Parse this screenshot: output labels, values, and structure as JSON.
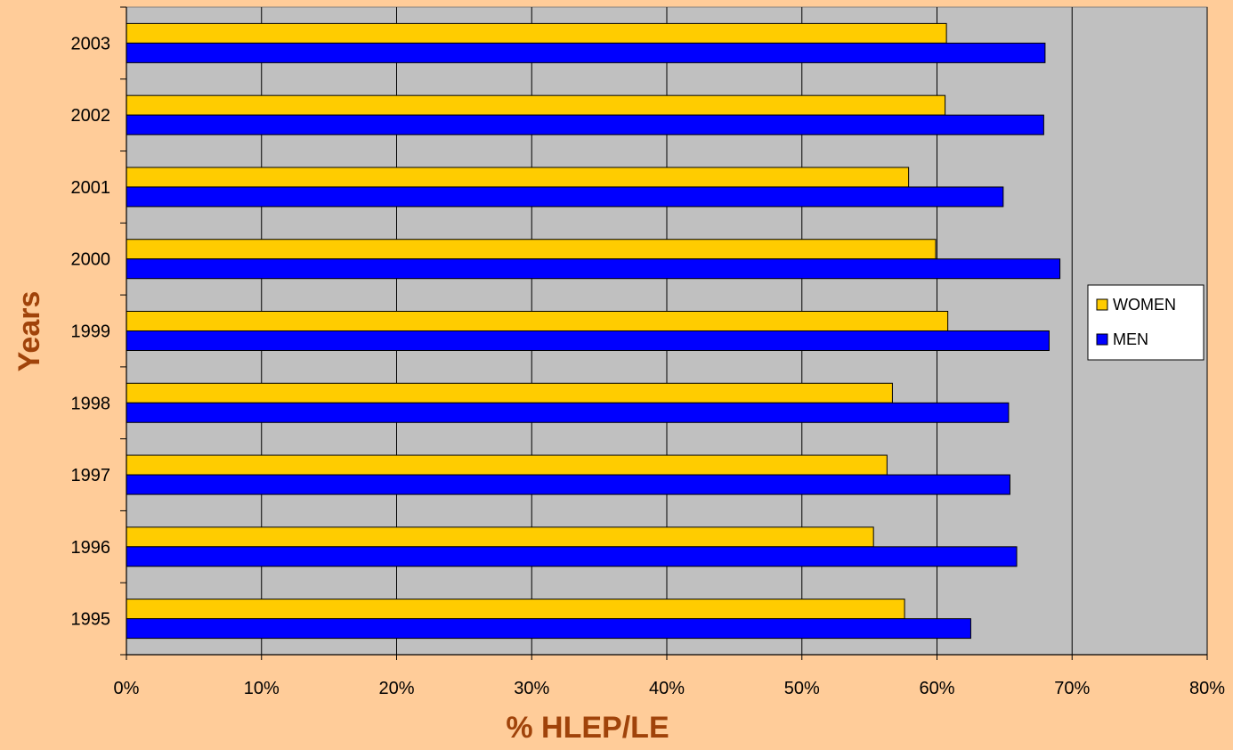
{
  "chart_data": {
    "type": "bar",
    "orientation": "horizontal",
    "categories": [
      "1995",
      "1996",
      "1997",
      "1998",
      "1999",
      "2000",
      "2001",
      "2002",
      "2003"
    ],
    "series": [
      {
        "name": "WOMEN",
        "color": "#FFCC00",
        "values": [
          57.6,
          55.3,
          56.3,
          56.7,
          60.8,
          59.9,
          57.9,
          60.6,
          60.7
        ]
      },
      {
        "name": "MEN",
        "color": "#0000FF",
        "values": [
          62.5,
          65.9,
          65.4,
          65.3,
          68.3,
          69.1,
          64.9,
          67.9,
          68.0
        ]
      }
    ],
    "x_ticks": [
      "0%",
      "10%",
      "20%",
      "30%",
      "40%",
      "50%",
      "60%",
      "70%",
      "80%"
    ],
    "xlim": [
      0,
      80
    ],
    "xlabel": "% HLEP/LE",
    "ylabel": "Years",
    "title": "",
    "grid": true,
    "legend_position": "right",
    "plot_background": "#C0C0C0"
  }
}
